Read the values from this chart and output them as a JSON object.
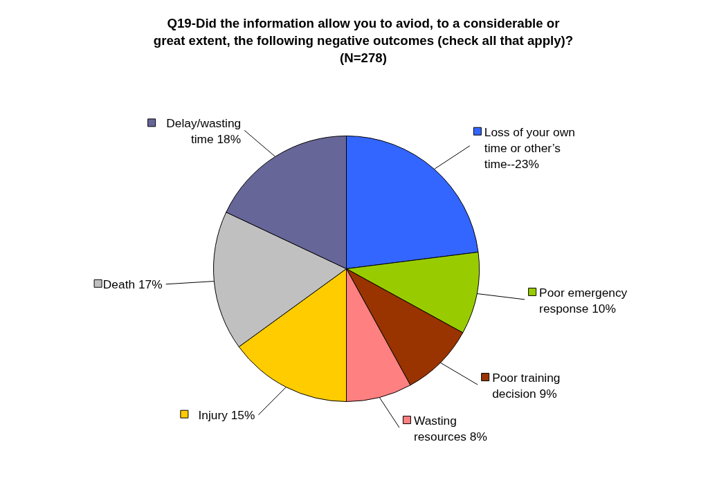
{
  "chart_data": {
    "type": "pie",
    "title": "Q19-Did the information allow you to aviod, to a considerable or\ngreat extent, the following negative outcomes (check all that apply)?\n(N=278)",
    "categories": [
      "Loss of your own\ntime or other’s\ntime--23%",
      "Poor emergency\nresponse 10%",
      "Poor training\ndecision  9%",
      "Wasting\nresources 8%",
      "Injury 15%",
      "Death 17%",
      "Delay/wasting\ntime 18%"
    ],
    "values": [
      23,
      10,
      9,
      8,
      15,
      17,
      18
    ],
    "colors": [
      "#3366ff",
      "#99cc00",
      "#993300",
      "#ff8080",
      "#ffcc00",
      "#c0c0c0",
      "#666699"
    ],
    "legend": "right"
  }
}
